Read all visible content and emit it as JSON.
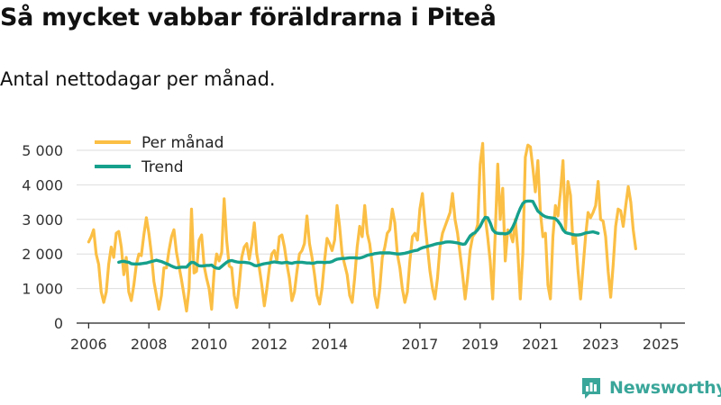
{
  "title": "Så mycket vabbar föräldrarna i Piteå",
  "subtitle": "Antal nettodagar per månad.",
  "brand": "Newsworthy",
  "colors": {
    "per_month": "#fbbf45",
    "trend": "#16a08c",
    "grid": "#dddddd",
    "axis": "#222222"
  },
  "chart_data": {
    "type": "line",
    "title": "Så mycket vabbar föräldrarna i Piteå",
    "subtitle": "Antal nettodagar per månad.",
    "xlabel": "",
    "ylabel": "",
    "xlim": [
      2005.6,
      2025.8
    ],
    "ylim": [
      0,
      5000
    ],
    "grid": true,
    "legend_position": "top-left",
    "y_ticks": [
      0,
      1000,
      2000,
      3000,
      4000,
      5000
    ],
    "y_tick_labels": [
      "0",
      "1 000",
      "2 000",
      "3 000",
      "4 000",
      "5 000"
    ],
    "x_ticks": [
      2006,
      2008,
      2010,
      2012,
      2014,
      2017,
      2019,
      2021,
      2023,
      2025
    ],
    "x_tick_labels": [
      "2006",
      "2008",
      "2010",
      "2012",
      "2014",
      "2017",
      "2019",
      "2021",
      "2023",
      "2025"
    ],
    "series": [
      {
        "name": "Per månad",
        "color": "#fbbf45",
        "x_start": 2006.0,
        "step": 0.0833333,
        "values": [
          2350,
          2500,
          2700,
          2000,
          1700,
          900,
          600,
          900,
          1700,
          2200,
          1900,
          2600,
          2650,
          2200,
          1400,
          1900,
          900,
          650,
          1100,
          1700,
          2000,
          1950,
          2550,
          3050,
          2600,
          2000,
          1200,
          800,
          400,
          800,
          1600,
          1600,
          2100,
          2500,
          2700,
          2050,
          1650,
          1250,
          800,
          350,
          1000,
          3300,
          1450,
          1500,
          2400,
          2550,
          1650,
          1300,
          1000,
          400,
          1500,
          2000,
          1800,
          2050,
          3600,
          2400,
          1650,
          1600,
          800,
          450,
          1100,
          1900,
          2200,
          2300,
          1850,
          2300,
          2900,
          2000,
          1600,
          1100,
          500,
          1000,
          1600,
          2000,
          2100,
          1800,
          2500,
          2550,
          2200,
          1700,
          1300,
          650,
          900,
          1500,
          2000,
          2100,
          2300,
          3100,
          2300,
          1900,
          1400,
          800,
          550,
          1000,
          1800,
          2450,
          2300,
          2100,
          2400,
          3400,
          2800,
          2000,
          1700,
          1400,
          800,
          600,
          1300,
          2200,
          2800,
          2500,
          3400,
          2600,
          2300,
          1700,
          800,
          450,
          1000,
          1900,
          2200,
          2600,
          2700,
          3300,
          2900,
          2000,
          1600,
          1000,
          600,
          900,
          1800,
          2500,
          2600,
          2400,
          3300,
          3750,
          2900,
          2200,
          1500,
          1000,
          700,
          1300,
          2200,
          2600,
          2800,
          3000,
          3200,
          3750,
          3000,
          2600,
          2000,
          1400,
          700,
          1300,
          2100,
          2500,
          2600,
          2850,
          4600,
          5200,
          3100,
          2500,
          1800,
          700,
          2600,
          4600,
          3000,
          3900,
          1800,
          2700,
          2600,
          2350,
          3000,
          2100,
          700,
          2000,
          4800,
          5150,
          5100,
          4500,
          3800,
          4700,
          3200,
          2500,
          2600,
          1100,
          700,
          2500,
          3400,
          3100,
          3800,
          4700,
          2700,
          4100,
          3700,
          2300,
          2500,
          1500,
          700,
          1600,
          2500,
          3200,
          3050,
          3200,
          3400,
          4100,
          3000,
          2950,
          2500,
          1500,
          750,
          1700,
          2800,
          3300,
          3250,
          2800,
          3400,
          3950,
          3500,
          2700,
          2150
        ]
      },
      {
        "name": "Trend",
        "color": "#16a08c",
        "x_start": 2007.0,
        "step": 0.0833333,
        "values": [
          1760,
          1780,
          1790,
          1770,
          1760,
          1720,
          1710,
          1710,
          1710,
          1720,
          1730,
          1740,
          1760,
          1780,
          1800,
          1820,
          1800,
          1780,
          1750,
          1720,
          1690,
          1650,
          1620,
          1600,
          1610,
          1620,
          1620,
          1620,
          1700,
          1760,
          1750,
          1700,
          1660,
          1650,
          1660,
          1670,
          1670,
          1680,
          1620,
          1590,
          1580,
          1640,
          1700,
          1760,
          1800,
          1810,
          1790,
          1770,
          1760,
          1760,
          1760,
          1750,
          1740,
          1710,
          1670,
          1660,
          1680,
          1700,
          1720,
          1730,
          1740,
          1760,
          1770,
          1760,
          1750,
          1740,
          1750,
          1760,
          1740,
          1730,
          1750,
          1760,
          1760,
          1760,
          1750,
          1740,
          1740,
          1730,
          1740,
          1760,
          1760,
          1760,
          1750,
          1760,
          1760,
          1780,
          1820,
          1850,
          1860,
          1870,
          1870,
          1880,
          1890,
          1890,
          1890,
          1880,
          1880,
          1900,
          1930,
          1960,
          1980,
          1990,
          2010,
          2020,
          2030,
          2030,
          2030,
          2030,
          2030,
          2020,
          2010,
          2000,
          2000,
          2010,
          2020,
          2040,
          2060,
          2080,
          2100,
          2110,
          2150,
          2180,
          2200,
          2220,
          2240,
          2260,
          2280,
          2300,
          2310,
          2320,
          2340,
          2350,
          2350,
          2340,
          2330,
          2320,
          2300,
          2280,
          2290,
          2400,
          2520,
          2580,
          2620,
          2700,
          2800,
          2950,
          3060,
          3050,
          2900,
          2700,
          2620,
          2600,
          2590,
          2590,
          2580,
          2600,
          2650,
          2780,
          2940,
          3140,
          3320,
          3460,
          3520,
          3530,
          3530,
          3520,
          3380,
          3240,
          3180,
          3120,
          3080,
          3060,
          3050,
          3040,
          3020,
          2950,
          2850,
          2700,
          2620,
          2600,
          2580,
          2560,
          2550,
          2550,
          2560,
          2580,
          2610,
          2620,
          2630,
          2640,
          2620,
          2600
        ]
      }
    ]
  }
}
